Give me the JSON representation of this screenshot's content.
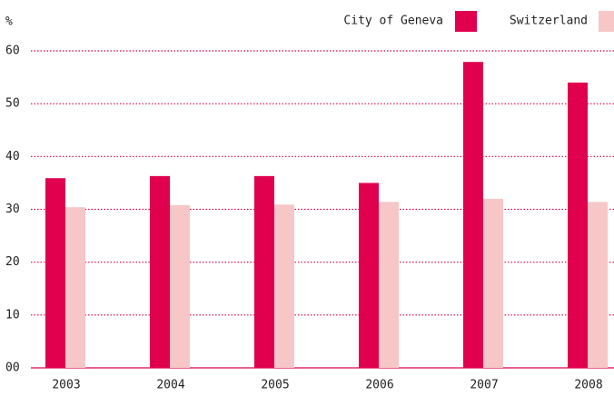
{
  "chart_data": {
    "type": "bar",
    "y_label": "%",
    "categories": [
      "2003",
      "2004",
      "2005",
      "2006",
      "2007",
      "2008"
    ],
    "series": [
      {
        "name": "City of Geneva",
        "color": "#e0004d",
        "values": [
          35.9,
          36.3,
          36.3,
          35.0,
          57.9,
          54.0
        ]
      },
      {
        "name": "Switzerland",
        "color": "#f7c6c7",
        "values": [
          30.4,
          30.8,
          30.9,
          31.4,
          32.0,
          31.4
        ]
      }
    ],
    "ylim": [
      0,
      60
    ],
    "yticks": [
      {
        "value": 0,
        "label": "00"
      },
      10,
      20,
      30,
      40,
      50,
      60
    ],
    "grid": true,
    "legend": "top-right"
  }
}
